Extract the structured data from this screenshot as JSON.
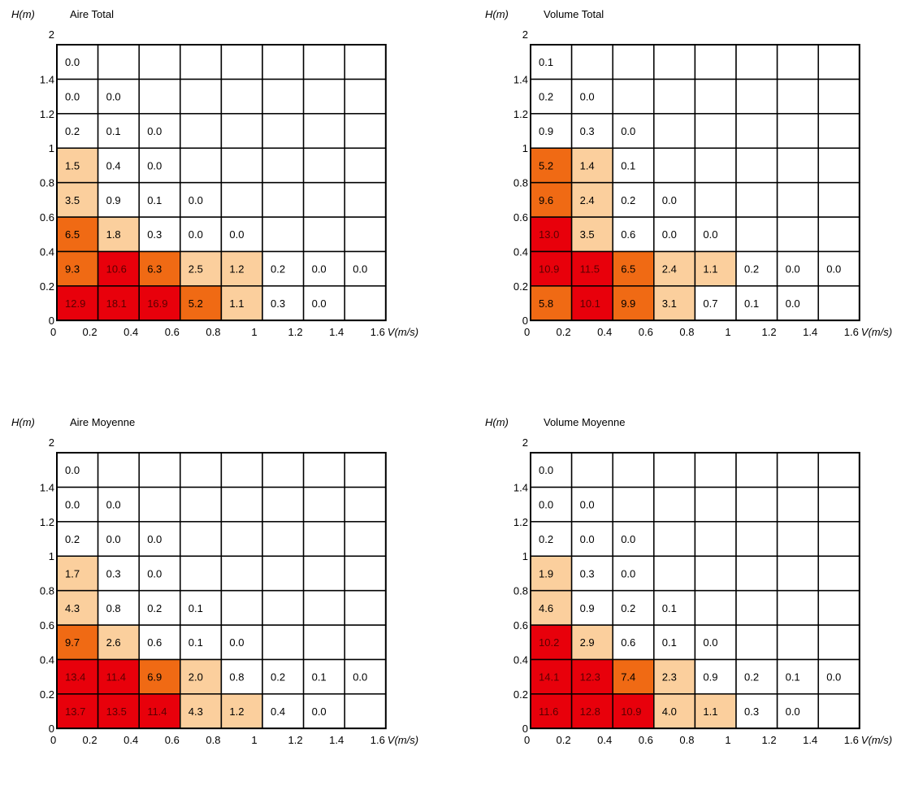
{
  "colors": {
    "high": "#e8000b",
    "mid": "#f06a14",
    "low": "#fbcf9d",
    "none": "#ffffff",
    "grid": "#000000"
  },
  "chart_data": [
    {
      "type": "heatmap",
      "title": "Aire Total",
      "xlabel": "V(m/s)",
      "ylabel": "H(m)",
      "x_ticks": [
        "0",
        "0.2",
        "0.4",
        "0.6",
        "0.8",
        "1",
        "1.2",
        "1.4",
        "1.6"
      ],
      "y_ticks": [
        "0",
        "0.2",
        "0.4",
        "0.6",
        "0.8",
        "1",
        "1.2",
        "1.4",
        "2"
      ],
      "rows": [
        [
          "12.9",
          "18.1",
          "16.9",
          "5.2",
          "1.1",
          "0.3",
          "0.0",
          ""
        ],
        [
          "9.3",
          "10.6",
          "6.3",
          "2.5",
          "1.2",
          "0.2",
          "0.0",
          "0.0"
        ],
        [
          "6.5",
          "1.8",
          "0.3",
          "0.0",
          "0.0",
          "",
          "",
          ""
        ],
        [
          "3.5",
          "0.9",
          "0.1",
          "0.0",
          "",
          "",
          "",
          ""
        ],
        [
          "1.5",
          "0.4",
          "0.0",
          "",
          "",
          "",
          "",
          ""
        ],
        [
          "0.2",
          "0.1",
          "0.0",
          "",
          "",
          "",
          "",
          ""
        ],
        [
          "0.0",
          "0.0",
          "",
          "",
          "",
          "",
          "",
          ""
        ],
        [
          "0.0",
          "",
          "",
          "",
          "",
          "",
          "",
          ""
        ]
      ],
      "levels": [
        [
          "high",
          "high",
          "high",
          "mid",
          "low",
          "none",
          "none",
          "none"
        ],
        [
          "mid",
          "high",
          "mid",
          "low",
          "low",
          "none",
          "none",
          "none"
        ],
        [
          "mid",
          "low",
          "none",
          "none",
          "none",
          "none",
          "none",
          "none"
        ],
        [
          "low",
          "none",
          "none",
          "none",
          "none",
          "none",
          "none",
          "none"
        ],
        [
          "low",
          "none",
          "none",
          "none",
          "none",
          "none",
          "none",
          "none"
        ],
        [
          "none",
          "none",
          "none",
          "none",
          "none",
          "none",
          "none",
          "none"
        ],
        [
          "none",
          "none",
          "none",
          "none",
          "none",
          "none",
          "none",
          "none"
        ],
        [
          "none",
          "none",
          "none",
          "none",
          "none",
          "none",
          "none",
          "none"
        ]
      ]
    },
    {
      "type": "heatmap",
      "title": "Volume Total",
      "xlabel": "V(m/s)",
      "ylabel": "H(m)",
      "x_ticks": [
        "0",
        "0.2",
        "0.4",
        "0.6",
        "0.8",
        "1",
        "1.2",
        "1.4",
        "1.6"
      ],
      "y_ticks": [
        "0",
        "0.2",
        "0.4",
        "0.6",
        "0.8",
        "1",
        "1.2",
        "1.4",
        "2"
      ],
      "rows": [
        [
          "5.8",
          "10.1",
          "9.9",
          "3.1",
          "0.7",
          "0.1",
          "0.0",
          ""
        ],
        [
          "10.9",
          "11.5",
          "6.5",
          "2.4",
          "1.1",
          "0.2",
          "0.0",
          "0.0"
        ],
        [
          "13.0",
          "3.5",
          "0.6",
          "0.0",
          "0.0",
          "",
          "",
          ""
        ],
        [
          "9.6",
          "2.4",
          "0.2",
          "0.0",
          "",
          "",
          "",
          ""
        ],
        [
          "5.2",
          "1.4",
          "0.1",
          "",
          "",
          "",
          "",
          ""
        ],
        [
          "0.9",
          "0.3",
          "0.0",
          "",
          "",
          "",
          "",
          ""
        ],
        [
          "0.2",
          "0.0",
          "",
          "",
          "",
          "",
          "",
          ""
        ],
        [
          "0.1",
          "",
          "",
          "",
          "",
          "",
          "",
          ""
        ]
      ],
      "levels": [
        [
          "mid",
          "high",
          "mid",
          "low",
          "none",
          "none",
          "none",
          "none"
        ],
        [
          "high",
          "high",
          "mid",
          "low",
          "low",
          "none",
          "none",
          "none"
        ],
        [
          "high",
          "low",
          "none",
          "none",
          "none",
          "none",
          "none",
          "none"
        ],
        [
          "mid",
          "low",
          "none",
          "none",
          "none",
          "none",
          "none",
          "none"
        ],
        [
          "mid",
          "low",
          "none",
          "none",
          "none",
          "none",
          "none",
          "none"
        ],
        [
          "none",
          "none",
          "none",
          "none",
          "none",
          "none",
          "none",
          "none"
        ],
        [
          "none",
          "none",
          "none",
          "none",
          "none",
          "none",
          "none",
          "none"
        ],
        [
          "none",
          "none",
          "none",
          "none",
          "none",
          "none",
          "none",
          "none"
        ]
      ]
    },
    {
      "type": "heatmap",
      "title": "Aire Moyenne",
      "xlabel": "V(m/s)",
      "ylabel": "H(m)",
      "x_ticks": [
        "0",
        "0.2",
        "0.4",
        "0.6",
        "0.8",
        "1",
        "1.2",
        "1.4",
        "1.6"
      ],
      "y_ticks": [
        "0",
        "0.2",
        "0.4",
        "0.6",
        "0.8",
        "1",
        "1.2",
        "1.4",
        "2"
      ],
      "rows": [
        [
          "13.7",
          "13.5",
          "11.4",
          "4.3",
          "1.2",
          "0.4",
          "0.0",
          ""
        ],
        [
          "13.4",
          "11.4",
          "6.9",
          "2.0",
          "0.8",
          "0.2",
          "0.1",
          "0.0"
        ],
        [
          "9.7",
          "2.6",
          "0.6",
          "0.1",
          "0.0",
          "",
          "",
          ""
        ],
        [
          "4.3",
          "0.8",
          "0.2",
          "0.1",
          "",
          "",
          "",
          ""
        ],
        [
          "1.7",
          "0.3",
          "0.0",
          "",
          "",
          "",
          "",
          ""
        ],
        [
          "0.2",
          "0.0",
          "0.0",
          "",
          "",
          "",
          "",
          ""
        ],
        [
          "0.0",
          "0.0",
          "",
          "",
          "",
          "",
          "",
          ""
        ],
        [
          "0.0",
          "",
          "",
          "",
          "",
          "",
          "",
          ""
        ]
      ],
      "levels": [
        [
          "high",
          "high",
          "high",
          "low",
          "low",
          "none",
          "none",
          "none"
        ],
        [
          "high",
          "high",
          "mid",
          "low",
          "none",
          "none",
          "none",
          "none"
        ],
        [
          "mid",
          "low",
          "none",
          "none",
          "none",
          "none",
          "none",
          "none"
        ],
        [
          "low",
          "none",
          "none",
          "none",
          "none",
          "none",
          "none",
          "none"
        ],
        [
          "low",
          "none",
          "none",
          "none",
          "none",
          "none",
          "none",
          "none"
        ],
        [
          "none",
          "none",
          "none",
          "none",
          "none",
          "none",
          "none",
          "none"
        ],
        [
          "none",
          "none",
          "none",
          "none",
          "none",
          "none",
          "none",
          "none"
        ],
        [
          "none",
          "none",
          "none",
          "none",
          "none",
          "none",
          "none",
          "none"
        ]
      ]
    },
    {
      "type": "heatmap",
      "title": "Volume Moyenne",
      "xlabel": "V(m/s)",
      "ylabel": "H(m)",
      "x_ticks": [
        "0",
        "0.2",
        "0.4",
        "0.6",
        "0.8",
        "1",
        "1.2",
        "1.4",
        "1.6"
      ],
      "y_ticks": [
        "0",
        "0.2",
        "0.4",
        "0.6",
        "0.8",
        "1",
        "1.2",
        "1.4",
        "2"
      ],
      "rows": [
        [
          "11.6",
          "12.8",
          "10.9",
          "4.0",
          "1.1",
          "0.3",
          "0.0",
          ""
        ],
        [
          "14.1",
          "12.3",
          "7.4",
          "2.3",
          "0.9",
          "0.2",
          "0.1",
          "0.0"
        ],
        [
          "10.2",
          "2.9",
          "0.6",
          "0.1",
          "0.0",
          "",
          "",
          ""
        ],
        [
          "4.6",
          "0.9",
          "0.2",
          "0.1",
          "",
          "",
          "",
          ""
        ],
        [
          "1.9",
          "0.3",
          "0.0",
          "",
          "",
          "",
          "",
          ""
        ],
        [
          "0.2",
          "0.0",
          "0.0",
          "",
          "",
          "",
          "",
          ""
        ],
        [
          "0.0",
          "0.0",
          "",
          "",
          "",
          "",
          "",
          ""
        ],
        [
          "0.0",
          "",
          "",
          "",
          "",
          "",
          "",
          ""
        ]
      ],
      "levels": [
        [
          "high",
          "high",
          "high",
          "low",
          "low",
          "none",
          "none",
          "none"
        ],
        [
          "high",
          "high",
          "mid",
          "low",
          "none",
          "none",
          "none",
          "none"
        ],
        [
          "high",
          "low",
          "none",
          "none",
          "none",
          "none",
          "none",
          "none"
        ],
        [
          "low",
          "none",
          "none",
          "none",
          "none",
          "none",
          "none",
          "none"
        ],
        [
          "low",
          "none",
          "none",
          "none",
          "none",
          "none",
          "none",
          "none"
        ],
        [
          "none",
          "none",
          "none",
          "none",
          "none",
          "none",
          "none",
          "none"
        ],
        [
          "none",
          "none",
          "none",
          "none",
          "none",
          "none",
          "none",
          "none"
        ],
        [
          "none",
          "none",
          "none",
          "none",
          "none",
          "none",
          "none",
          "none"
        ]
      ]
    }
  ]
}
